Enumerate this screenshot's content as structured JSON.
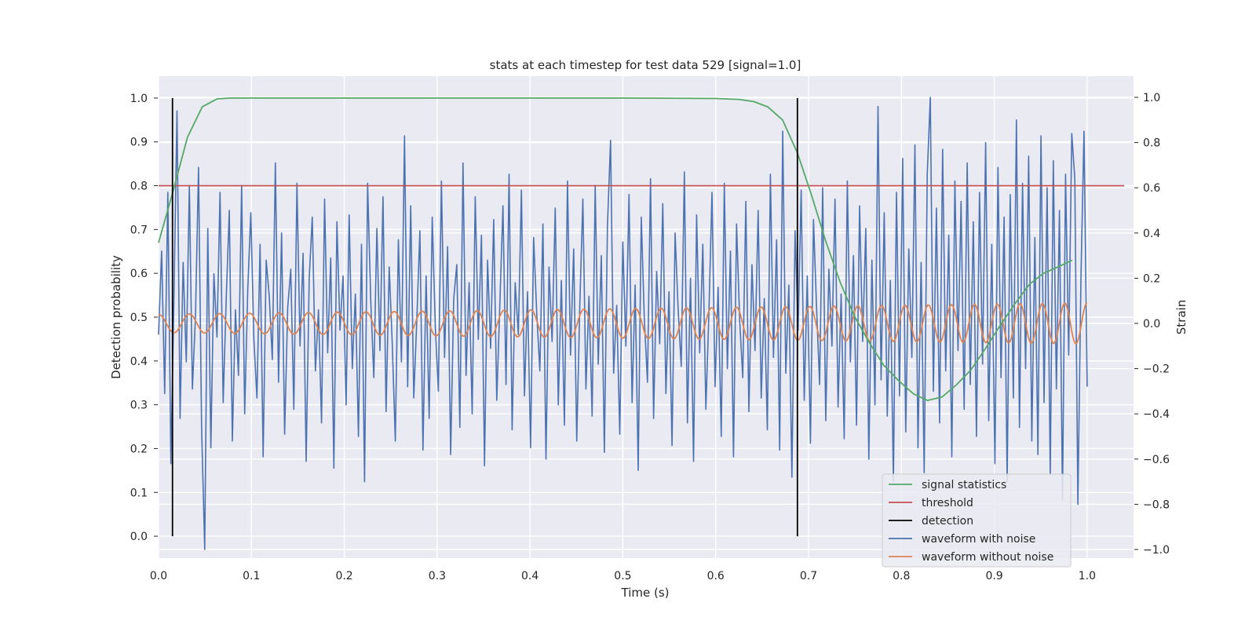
{
  "chart_data": {
    "type": "line",
    "title": "stats at each timestep for test data 529 [signal=1.0]",
    "xlabel": "Time (s)",
    "ylabel_left": "Detection probability",
    "ylabel_right": "Strain",
    "xlim": [
      0.0,
      1.05
    ],
    "ylim_left": [
      -0.05,
      1.05
    ],
    "ylim_right": [
      -1.0,
      1.0
    ],
    "x_ticks": [
      0.0,
      0.1,
      0.2,
      0.3,
      0.4,
      0.5,
      0.6,
      0.7,
      0.8,
      0.9,
      1.0
    ],
    "x_tick_labels": [
      "0.0",
      "0.1",
      "0.2",
      "0.3",
      "0.4",
      "0.5",
      "0.6",
      "0.7",
      "0.8",
      "0.9",
      "1.0"
    ],
    "y_left_ticks": [
      0.0,
      0.1,
      0.2,
      0.3,
      0.4,
      0.5,
      0.6,
      0.7,
      0.8,
      0.9,
      1.0
    ],
    "y_left_tick_labels": [
      "0.0",
      "0.1",
      "0.2",
      "0.3",
      "0.4",
      "0.5",
      "0.6",
      "0.7",
      "0.8",
      "0.9",
      "1.0"
    ],
    "y_right_ticks": [
      -1.0,
      -0.8,
      -0.6,
      -0.4,
      -0.2,
      0.0,
      0.2,
      0.4,
      0.6,
      0.8,
      1.0
    ],
    "y_right_tick_labels": [
      "−1.0",
      "−0.8",
      "−0.6",
      "−0.4",
      "−0.2",
      "0.0",
      "0.2",
      "0.4",
      "0.6",
      "0.8",
      "1.0"
    ],
    "grid": true,
    "legend_position": "bottom-right",
    "series": [
      {
        "name": "signal statistics",
        "axis": "left",
        "color": "#55a868",
        "x": [
          0.0,
          0.016,
          0.031,
          0.047,
          0.063,
          0.078,
          0.1,
          0.2,
          0.3,
          0.4,
          0.5,
          0.6,
          0.625,
          0.641,
          0.656,
          0.672,
          0.688,
          0.703,
          0.719,
          0.734,
          0.75,
          0.766,
          0.781,
          0.797,
          0.813,
          0.828,
          0.844,
          0.859,
          0.875,
          0.891,
          0.906,
          0.922,
          0.938,
          0.953,
          0.969,
          0.984
        ],
        "y": [
          0.67,
          0.79,
          0.91,
          0.98,
          0.998,
          1.0,
          1.0,
          1.0,
          1.0,
          1.0,
          1.0,
          0.999,
          0.997,
          0.992,
          0.98,
          0.95,
          0.875,
          0.78,
          0.67,
          0.58,
          0.5,
          0.44,
          0.39,
          0.355,
          0.325,
          0.31,
          0.318,
          0.345,
          0.38,
          0.43,
          0.48,
          0.53,
          0.575,
          0.6,
          0.615,
          0.63
        ]
      },
      {
        "name": "threshold",
        "axis": "left",
        "color": "#c44e52",
        "x": [
          0.0,
          1.04
        ],
        "y": [
          0.8,
          0.8
        ]
      },
      {
        "name": "detection",
        "axis": "left",
        "color": "#000000",
        "lines": [
          {
            "x": 0.015,
            "y": [
              0.0,
              1.0
            ]
          },
          {
            "x": 0.688,
            "y": [
              0.0,
              1.0
            ]
          }
        ]
      },
      {
        "name": "waveform with noise",
        "axis": "right",
        "color": "#4c72b0",
        "x_start": 0.0,
        "x_end": 1.0,
        "y": [
          -0.05,
          0.32,
          -0.31,
          0.58,
          -0.62,
          0.12,
          0.94,
          -0.42,
          0.27,
          -0.17,
          0.61,
          -0.29,
          0.03,
          0.69,
          -0.46,
          -1.0,
          0.42,
          -0.55,
          0.22,
          -0.06,
          0.58,
          -0.35,
          0.11,
          0.5,
          -0.52,
          0.06,
          -0.23,
          0.61,
          -0.4,
          0.15,
          0.49,
          -0.07,
          -0.33,
          0.35,
          -0.59,
          0.28,
          0.12,
          -0.16,
          0.71,
          -0.26,
          0.4,
          -0.49,
          0.07,
          0.24,
          -0.38,
          0.62,
          -0.1,
          0.31,
          -0.61,
          0.2,
          0.47,
          -0.21,
          0.06,
          -0.44,
          0.55,
          -0.13,
          0.29,
          -0.64,
          0.45,
          -0.03,
          0.21,
          -0.36,
          0.48,
          -0.2,
          0.13,
          -0.5,
          0.35,
          -0.7,
          0.62,
          0.1,
          -0.24,
          0.42,
          -0.12,
          0.56,
          -0.39,
          0.25,
          -0.09,
          -0.52,
          0.37,
          -0.17,
          0.83,
          -0.28,
          0.52,
          -0.33,
          0.02,
          0.41,
          -0.56,
          0.21,
          -0.42,
          0.47,
          -0.01,
          -0.3,
          0.63,
          -0.15,
          0.34,
          -0.58,
          0.11,
          0.26,
          -0.46,
          0.71,
          -0.23,
          0.18,
          -0.4,
          0.56,
          -0.07,
          0.39,
          -0.63,
          0.28,
          -0.11,
          0.46,
          -0.34,
          0.09,
          0.52,
          -0.27,
          0.66,
          -0.47,
          0.18,
          -0.05,
          0.59,
          -0.32,
          0.14,
          -0.55,
          0.38,
          0.04,
          -0.21,
          0.44,
          -0.6,
          0.25,
          -0.08,
          0.51,
          -0.36,
          0.19,
          -0.45,
          0.63,
          -0.14,
          0.33,
          -0.52,
          0.08,
          0.55,
          -0.29,
          0.12,
          -0.41,
          0.61,
          -0.18,
          0.3,
          -0.57,
          0.43,
          0.81,
          -0.22,
          0.08,
          -0.49,
          0.36,
          -0.1,
          0.57,
          -0.35,
          0.17,
          -0.65,
          0.47,
          0.02,
          -0.26,
          0.64,
          -0.42,
          0.23,
          -0.09,
          0.53,
          -0.31,
          0.14,
          -0.54,
          0.4,
          0.06,
          -0.19,
          0.67,
          -0.44,
          0.2,
          -0.61,
          0.48,
          -0.13,
          0.35,
          -0.38,
          0.05,
          0.58,
          -0.28,
          0.16,
          -0.5,
          0.62,
          -0.2,
          0.32,
          -0.59,
          0.44,
          0.01,
          -0.24,
          0.54,
          -0.39,
          0.26,
          -0.12,
          0.5,
          -0.33,
          0.11,
          -0.47,
          0.66,
          -0.15,
          0.37,
          -0.56,
          0.85,
          -0.22,
          0.17,
          -0.68,
          0.41,
          -0.03,
          0.59,
          -0.34,
          0.21,
          -0.53,
          0.46,
          0.07,
          -0.27,
          0.6,
          -0.43,
          0.24,
          -0.1,
          0.55,
          -0.37,
          0.13,
          -0.51,
          0.63,
          -0.17,
          0.3,
          -0.45,
          0.52,
          -0.08,
          0.42,
          -0.6,
          0.28,
          -0.36,
          0.96,
          -0.25,
          0.49,
          -0.41,
          0.19,
          -0.7,
          0.58,
          -0.32,
          0.73,
          -0.48,
          0.33,
          -0.15,
          0.79,
          -0.55,
          0.27,
          -0.66,
          0.66,
          1.0,
          -0.3,
          0.51,
          -0.44,
          0.77,
          -0.21,
          0.39,
          -0.59,
          0.63,
          -0.12,
          0.54,
          -0.38,
          0.71,
          -0.27,
          0.45,
          -0.5,
          0.58,
          -0.18,
          0.8,
          -0.43,
          0.35,
          -0.62,
          0.69,
          -0.24,
          0.47,
          -0.7,
          0.57,
          -0.33,
          0.9,
          -0.46,
          0.62,
          -0.2,
          0.74,
          -0.52,
          0.38,
          -0.58,
          0.83,
          -0.35,
          0.6,
          -0.67,
          0.72,
          -0.29,
          0.5,
          -0.78,
          0.66,
          -0.14,
          0.84,
          0.64,
          -0.8,
          0.2,
          0.85,
          -0.28
        ]
      },
      {
        "name": "waveform without noise",
        "axis": "right",
        "color": "#dd8452",
        "amplitude_start": 0.04,
        "amplitude_end": 0.09,
        "frequency_start_hz": 30,
        "frequency_end_hz": 42
      }
    ]
  }
}
